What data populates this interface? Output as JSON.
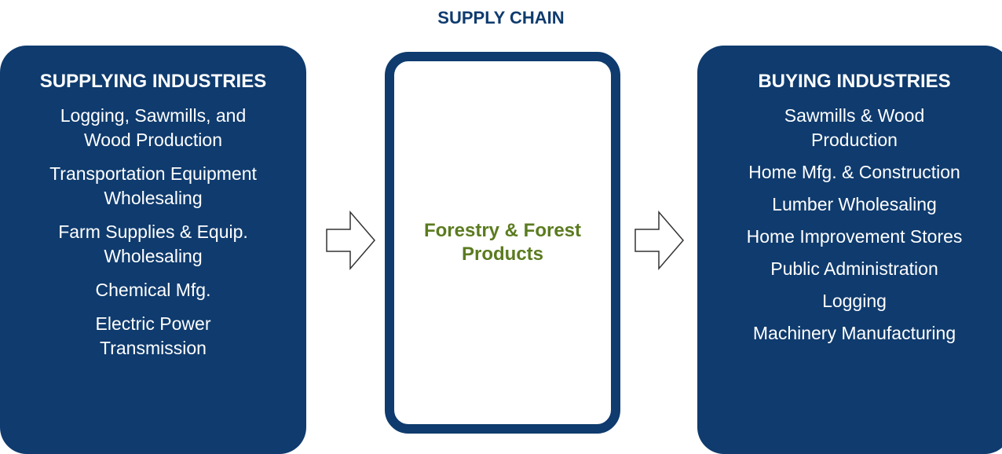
{
  "title": "SUPPLY CHAIN",
  "supplying": {
    "title": "SUPPLYING INDUSTRIES",
    "items": [
      [
        "Logging, Sawmills, and",
        "Wood Production"
      ],
      [
        "Transportation Equipment",
        "Wholesaling"
      ],
      [
        "Farm Supplies & Equip.",
        "Wholesaling"
      ],
      [
        "Chemical Mfg."
      ],
      [
        "Electric Power",
        "Transmission"
      ]
    ]
  },
  "center": {
    "lines": [
      "Forestry & Forest",
      "Products"
    ]
  },
  "buying": {
    "title": "BUYING INDUSTRIES",
    "items": [
      [
        "Sawmills & Wood",
        "Production"
      ],
      [
        "Home Mfg. & Construction"
      ],
      [
        "Lumber Wholesaling"
      ],
      [
        "Home Improvement Stores"
      ],
      [
        "Public Administration"
      ],
      [
        "Logging"
      ],
      [
        "Machinery Manufacturing"
      ]
    ]
  }
}
